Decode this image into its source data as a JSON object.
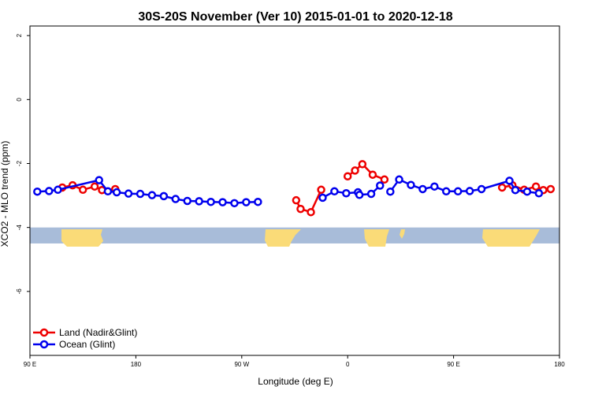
{
  "chart_data": {
    "type": "line",
    "title": "30S-20S November (Ver 10)   2015-01-01 to 2020-12-18",
    "xlabel": "Longitude (deg E)",
    "ylabel": "XCO2 - MLO trend (ppm)",
    "xlim": [
      90,
      450
    ],
    "ylim": [
      -8,
      2.3
    ],
    "x_ticks": [
      {
        "value": 90,
        "label": "90 E"
      },
      {
        "value": 162,
        "label": "180"
      },
      {
        "value": 234,
        "label": "90 W"
      },
      {
        "value": 306,
        "label": "0"
      },
      {
        "value": 378,
        "label": "90 E"
      },
      {
        "value": 450,
        "label": "180"
      }
    ],
    "y_ticks": [
      {
        "value": 2,
        "label": "2"
      },
      {
        "value": 0,
        "label": "0"
      },
      {
        "value": -2,
        "label": "-2"
      },
      {
        "value": -4,
        "label": "-4"
      },
      {
        "value": -6,
        "label": "-6"
      }
    ],
    "legend": {
      "position": "bottom-left"
    },
    "land_band": {
      "y_top": -4.0,
      "y_bottom": -4.5,
      "ocean_color": "#a8bcd9",
      "land_color": "#fadb78"
    },
    "series": [
      {
        "name": "Land (Nadir&Glint)",
        "color": "#ee0000",
        "segments": [
          [
            [
              112,
              -2.75
            ],
            [
              119,
              -2.68
            ],
            [
              126,
              -2.82
            ],
            [
              134,
              -2.72
            ],
            [
              139,
              -2.83
            ],
            [
              148,
              -2.8
            ]
          ],
          [
            [
              271,
              -3.15
            ],
            [
              274,
              -3.42
            ],
            [
              281,
              -3.52
            ],
            [
              288,
              -2.82
            ]
          ],
          [
            [
              306,
              -2.4
            ],
            [
              311,
              -2.22
            ],
            [
              316,
              -2.02
            ],
            [
              323,
              -2.35
            ],
            [
              331,
              -2.5
            ]
          ],
          [
            [
              411,
              -2.75
            ],
            [
              418,
              -2.68
            ],
            [
              426,
              -2.82
            ],
            [
              434,
              -2.72
            ],
            [
              439,
              -2.83
            ],
            [
              444,
              -2.8
            ]
          ]
        ]
      },
      {
        "name": "Ocean (Glint)",
        "color": "#0000ee",
        "segments": [
          [
            [
              95,
              -2.88
            ],
            [
              103,
              -2.86
            ],
            [
              109,
              -2.82
            ],
            [
              137,
              -2.52
            ],
            [
              143,
              -2.87
            ],
            [
              149,
              -2.9
            ],
            [
              157,
              -2.94
            ],
            [
              165,
              -2.95
            ],
            [
              173,
              -2.99
            ],
            [
              181,
              -3.02
            ],
            [
              189,
              -3.11
            ],
            [
              197,
              -3.17
            ],
            [
              205,
              -3.18
            ],
            [
              213,
              -3.2
            ],
            [
              221,
              -3.21
            ],
            [
              229,
              -3.24
            ],
            [
              237,
              -3.21
            ],
            [
              245,
              -3.2
            ]
          ],
          [
            [
              289,
              -3.07
            ],
            [
              297,
              -2.87
            ],
            [
              305,
              -2.93
            ],
            [
              313,
              -2.9
            ]
          ],
          [
            [
              314,
              -2.98
            ],
            [
              322,
              -2.95
            ],
            [
              328,
              -2.69
            ]
          ],
          [
            [
              335,
              -2.88
            ],
            [
              341,
              -2.5
            ],
            [
              349,
              -2.67
            ],
            [
              357,
              -2.8
            ],
            [
              365,
              -2.72
            ],
            [
              373,
              -2.87
            ],
            [
              381,
              -2.87
            ],
            [
              389,
              -2.86
            ],
            [
              397,
              -2.8
            ],
            [
              416,
              -2.54
            ],
            [
              420,
              -2.83
            ],
            [
              428,
              -2.88
            ],
            [
              436,
              -2.93
            ]
          ]
        ]
      }
    ]
  }
}
